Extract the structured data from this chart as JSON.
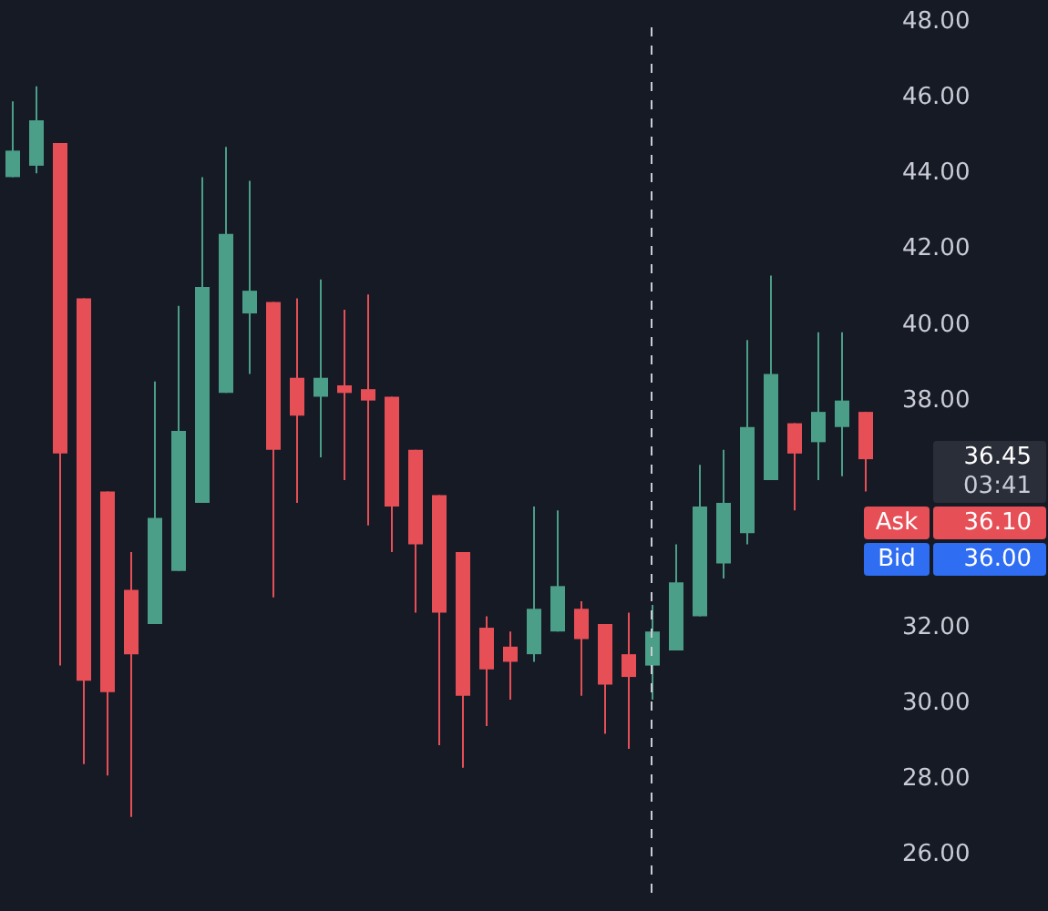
{
  "chart_data": {
    "type": "candlestick",
    "categories": [
      null,
      null,
      null,
      null,
      null,
      null,
      null,
      null,
      null,
      null,
      null,
      null,
      null,
      null,
      null,
      null,
      null,
      null,
      null,
      null,
      null,
      null,
      null,
      null,
      null,
      null,
      null,
      null,
      null,
      null,
      null,
      null,
      null,
      null,
      null,
      null,
      null
    ],
    "ohlc": [
      [
        43.9,
        45.9,
        43.9,
        44.6
      ],
      [
        44.2,
        46.3,
        44.0,
        45.4
      ],
      [
        44.8,
        44.8,
        31.0,
        36.6
      ],
      [
        40.7,
        40.7,
        28.4,
        30.6
      ],
      [
        35.6,
        35.6,
        28.1,
        30.3
      ],
      [
        33.0,
        34.0,
        27.0,
        31.3
      ],
      [
        32.1,
        38.5,
        32.1,
        34.9
      ],
      [
        33.5,
        40.5,
        33.5,
        37.2
      ],
      [
        35.3,
        43.9,
        35.3,
        41.0
      ],
      [
        38.2,
        44.7,
        38.2,
        42.4
      ],
      [
        40.3,
        43.8,
        38.7,
        40.9
      ],
      [
        40.6,
        40.6,
        32.8,
        36.7
      ],
      [
        38.6,
        40.7,
        35.3,
        37.6
      ],
      [
        38.1,
        41.2,
        36.5,
        38.6
      ],
      [
        38.4,
        40.4,
        35.9,
        38.2
      ],
      [
        38.3,
        40.8,
        34.7,
        38.0
      ],
      [
        38.1,
        38.1,
        34.0,
        35.2
      ],
      [
        36.7,
        36.7,
        32.4,
        34.2
      ],
      [
        35.5,
        35.5,
        28.9,
        32.4
      ],
      [
        34.0,
        34.0,
        28.3,
        30.2
      ],
      [
        32.0,
        32.3,
        29.4,
        30.9
      ],
      [
        31.5,
        31.9,
        30.1,
        31.1
      ],
      [
        31.3,
        35.2,
        31.1,
        32.5
      ],
      [
        31.9,
        35.1,
        31.9,
        33.1
      ],
      [
        32.5,
        32.7,
        30.2,
        31.7
      ],
      [
        32.1,
        32.1,
        29.2,
        30.5
      ],
      [
        31.3,
        32.4,
        28.8,
        30.7
      ],
      [
        31.0,
        32.6,
        30.1,
        31.9
      ],
      [
        31.4,
        34.2,
        31.4,
        33.2
      ],
      [
        32.3,
        36.3,
        32.3,
        35.2
      ],
      [
        33.7,
        36.7,
        33.3,
        35.3
      ],
      [
        34.5,
        39.6,
        34.2,
        37.3
      ],
      [
        35.9,
        41.3,
        35.9,
        38.7
      ],
      [
        37.4,
        37.4,
        35.1,
        36.6
      ],
      [
        36.9,
        39.8,
        35.9,
        37.7
      ],
      [
        37.3,
        39.8,
        36.0,
        38.0
      ],
      [
        37.7,
        37.7,
        35.6,
        36.45
      ]
    ],
    "colors": [
      "#4b9e87",
      "#4b9e87",
      "#e74f57",
      "#e74f57",
      "#e74f57",
      "#e74f57",
      "#4b9e87",
      "#4b9e87",
      "#4b9e87",
      "#4b9e87",
      "#4b9e87",
      "#e74f57",
      "#e74f57",
      "#4b9e87",
      "#e74f57",
      "#e74f57",
      "#e74f57",
      "#e74f57",
      "#e74f57",
      "#e74f57",
      "#e74f57",
      "#e74f57",
      "#4b9e87",
      "#4b9e87",
      "#e74f57",
      "#e74f57",
      "#e74f57",
      "#4b9e87",
      "#4b9e87",
      "#4b9e87",
      "#4b9e87",
      "#4b9e87",
      "#4b9e87",
      "#e74f57",
      "#4b9e87",
      "#4b9e87",
      "#e74f57"
    ],
    "ylim": [
      25,
      48
    ],
    "yticks": [
      {
        "value": 26,
        "label": "26.00"
      },
      {
        "value": 28,
        "label": "28.00"
      },
      {
        "value": 30,
        "label": "30.00"
      },
      {
        "value": 32,
        "label": "32.00"
      },
      {
        "value": 38,
        "label": "38.00"
      },
      {
        "value": 40,
        "label": "40.00"
      },
      {
        "value": 42,
        "label": "42.00"
      },
      {
        "value": 44,
        "label": "44.00"
      },
      {
        "value": 46,
        "label": "46.00"
      },
      {
        "value": 48,
        "label": "48.00"
      }
    ],
    "tick_labels": "y",
    "grid": false,
    "annotations": [
      "36.45",
      "03:41",
      "Ask",
      "36.10",
      "Bid",
      "36.00"
    ]
  }
}
